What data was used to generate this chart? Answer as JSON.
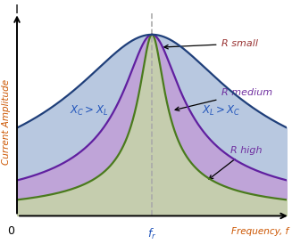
{
  "title": "",
  "xlabel": "Frequency, f",
  "ylabel": "Current Amplitude",
  "x_label_axis": "I",
  "f0": 0.0,
  "xmin": -4.5,
  "xmax": 4.5,
  "ymin": 0.0,
  "ymax": 1.12,
  "R_small": 0.4,
  "R_medium": 0.9,
  "R_high": 2.5,
  "color_small": "#4a7a1e",
  "fill_small": "#c8dba0",
  "color_medium": "#6020a0",
  "fill_medium": "#c0a0d8",
  "color_high": "#1f3f7a",
  "fill_high": "#b8c8e0",
  "label_small": "R small",
  "label_medium": "R medium",
  "label_high": "R high",
  "dashed_color": "#aaaaaa",
  "fr_label": "f_r",
  "annotation_color": "#7030a0",
  "bg_color": "#ffffff",
  "axis_color": "#000000",
  "text_color_blue": "#2255bb",
  "text_color_orange": "#cc5500"
}
